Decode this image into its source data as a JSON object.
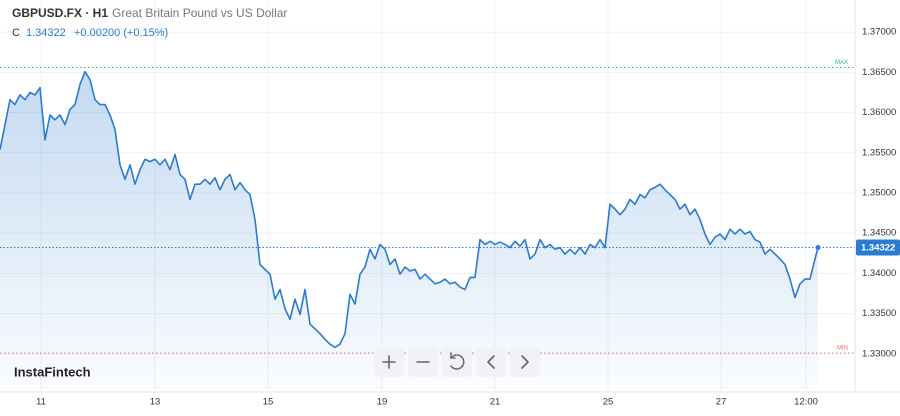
{
  "chart_data": {
    "type": "area",
    "title": "GBPUSD.FX · H1",
    "subtitle": "Great Britain Pound vs US Dollar",
    "close_prefix": "C",
    "last_value": 1.34322,
    "change": "+0.00200 (+0.15%)",
    "brand": "InstaFintech",
    "color": "#2b7bd0",
    "grid": true,
    "x": [
      0,
      1,
      2,
      3,
      4,
      5,
      6,
      7,
      8,
      9,
      10,
      11,
      12,
      13,
      14,
      15,
      16,
      17,
      18,
      19,
      20,
      21,
      22,
      23,
      24,
      25,
      26,
      27,
      28,
      29,
      30,
      31,
      32,
      33,
      34,
      35,
      36,
      37,
      38,
      39,
      40,
      41,
      42,
      43,
      44,
      45,
      46,
      47,
      48,
      49,
      50,
      51,
      52,
      53,
      54,
      55,
      56,
      57,
      58,
      59,
      60,
      61,
      62,
      63,
      64,
      65,
      66,
      67,
      68,
      69,
      70,
      71,
      72,
      73,
      74,
      75,
      76,
      77,
      78,
      79,
      80,
      81,
      82,
      83,
      84,
      85,
      86,
      87,
      88,
      89,
      90,
      91,
      92,
      93,
      94,
      95,
      96,
      97,
      98,
      99,
      100,
      101,
      102,
      103,
      104,
      105,
      106,
      107,
      108,
      109,
      110,
      111,
      112,
      113,
      114,
      115,
      116,
      117,
      118,
      119,
      120,
      121,
      122,
      123,
      124,
      125,
      126,
      127,
      128,
      129,
      130,
      131,
      132,
      133,
      134,
      135,
      136,
      137,
      138,
      139,
      140,
      141,
      142,
      143,
      144,
      145,
      146,
      147,
      148,
      149,
      150,
      151,
      152,
      153,
      154,
      155,
      156,
      157,
      158,
      159,
      160,
      161,
      162,
      163,
      163.6
    ],
    "values": [
      1.3554,
      1.3585,
      1.3616,
      1.361,
      1.3622,
      1.3616,
      1.3625,
      1.3622,
      1.3631,
      1.3566,
      1.3597,
      1.3591,
      1.3597,
      1.3585,
      1.3604,
      1.361,
      1.3635,
      1.3651,
      1.3641,
      1.3616,
      1.361,
      1.361,
      1.3597,
      1.3579,
      1.3535,
      1.3517,
      1.3535,
      1.3511,
      1.3529,
      1.3542,
      1.3539,
      1.3542,
      1.3535,
      1.3542,
      1.3529,
      1.3548,
      1.3523,
      1.3517,
      1.3492,
      1.3511,
      1.3511,
      1.3517,
      1.3511,
      1.3519,
      1.3504,
      1.3517,
      1.3523,
      1.3504,
      1.3513,
      1.3504,
      1.3498,
      1.3467,
      1.3411,
      1.3405,
      1.3399,
      1.3368,
      1.338,
      1.3356,
      1.3343,
      1.3368,
      1.3349,
      1.338,
      1.3337,
      1.3331,
      1.3325,
      1.3318,
      1.3312,
      1.3308,
      1.3312,
      1.3325,
      1.3374,
      1.3362,
      1.3399,
      1.3408,
      1.343,
      1.3418,
      1.3436,
      1.343,
      1.3411,
      1.3418,
      1.3399,
      1.3408,
      1.3403,
      1.3405,
      1.3393,
      1.3399,
      1.3393,
      1.3387,
      1.3389,
      1.3393,
      1.3387,
      1.3389,
      1.3383,
      1.338,
      1.3395,
      1.3395,
      1.3442,
      1.3436,
      1.344,
      1.3436,
      1.3439,
      1.3436,
      1.3432,
      1.344,
      1.3434,
      1.3442,
      1.3418,
      1.3424,
      1.3442,
      1.3432,
      1.3436,
      1.343,
      1.3432,
      1.3424,
      1.343,
      1.3424,
      1.3432,
      1.3424,
      1.3436,
      1.3432,
      1.3442,
      1.3432,
      1.3486,
      1.348,
      1.3473,
      1.348,
      1.3492,
      1.3486,
      1.3498,
      1.3494,
      1.3504,
      1.3507,
      1.3511,
      1.3504,
      1.3498,
      1.3492,
      1.348,
      1.3486,
      1.3473,
      1.348,
      1.3467,
      1.3449,
      1.3436,
      1.3445,
      1.3449,
      1.3442,
      1.3455,
      1.3449,
      1.3455,
      1.3449,
      1.3452,
      1.3442,
      1.3439,
      1.3424,
      1.343,
      1.3424,
      1.3418,
      1.3411,
      1.3393,
      1.337,
      1.3387,
      1.3393,
      1.3393,
      1.3418,
      1.34322
    ],
    "xlim": [
      0,
      171
    ],
    "xticks": [
      {
        "value": 8.2,
        "label": "11"
      },
      {
        "value": 31,
        "label": "13"
      },
      {
        "value": 53.6,
        "label": "15"
      },
      {
        "value": 76.4,
        "label": "19"
      },
      {
        "value": 99,
        "label": "21"
      },
      {
        "value": 121.6,
        "label": "25"
      },
      {
        "value": 144.2,
        "label": "27"
      },
      {
        "value": 161.2,
        "label": "12:00"
      }
    ],
    "ylim": [
      1.3255,
      1.374
    ],
    "yticks": [
      {
        "value": 1.33,
        "label": "1.33000"
      },
      {
        "value": 1.335,
        "label": "1.33500"
      },
      {
        "value": 1.34,
        "label": "1.34000"
      },
      {
        "value": 1.345,
        "label": "1.34500"
      },
      {
        "value": 1.35,
        "label": "1.35000"
      },
      {
        "value": 1.355,
        "label": "1.35500"
      },
      {
        "value": 1.36,
        "label": "1.36000"
      },
      {
        "value": 1.365,
        "label": "1.36500"
      },
      {
        "value": 1.37,
        "label": "1.37000"
      }
    ],
    "max_line": {
      "value": 1.3656,
      "label": "MAX",
      "color": "#2bb673"
    },
    "min_line": {
      "value": 1.3301,
      "label": "MIN",
      "color": "#e57373"
    }
  }
}
